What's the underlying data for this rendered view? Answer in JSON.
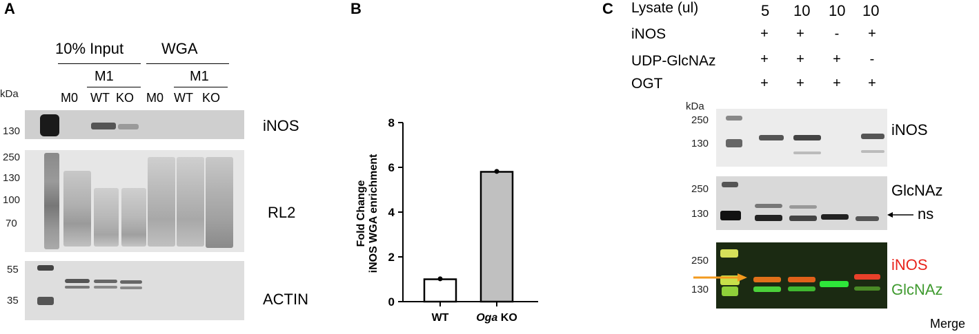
{
  "panelA": {
    "letter": "A",
    "group_input": "10% Input",
    "group_wga": "WGA",
    "m1_label": "M1",
    "lanes": [
      "M0",
      "WT",
      "KO",
      "M0",
      "WT",
      "KO"
    ],
    "kda": "kDa",
    "blots": [
      {
        "label": "iNOS",
        "markers": [
          "130"
        ]
      },
      {
        "label": "RL2",
        "markers": [
          "250",
          "130",
          "100",
          "70"
        ]
      },
      {
        "label": "ACTIN",
        "markers": [
          "55",
          "35"
        ]
      }
    ]
  },
  "panelB": {
    "letter": "B",
    "chart_data": {
      "type": "bar",
      "categories": [
        "WT",
        "Oga KO"
      ],
      "category_parts": [
        {
          "italic": "",
          "rest": "WT"
        },
        {
          "italic": "Oga",
          "rest": " KO"
        }
      ],
      "values": [
        1.0,
        5.8
      ],
      "points": [
        1.02,
        5.82
      ],
      "bar_colors": [
        "#ffffff",
        "#c0c0c0"
      ],
      "ylabel_line1": "Fold Change",
      "ylabel_line2": "iNOS WGA enrichment",
      "ylim": [
        0,
        8
      ],
      "yticks": [
        "0",
        "2",
        "4",
        "6",
        "8"
      ],
      "grid": false
    }
  },
  "panelC": {
    "letter": "C",
    "conditions": [
      {
        "name": "Lysate (ul)",
        "values": [
          "5",
          "10",
          "10",
          "10"
        ]
      },
      {
        "name": "iNOS",
        "values": [
          "+",
          "+",
          "-",
          "+"
        ]
      },
      {
        "name": "UDP-GlcNAz",
        "values": [
          "+",
          "+",
          "+",
          "-"
        ]
      },
      {
        "name": "OGT",
        "values": [
          "+",
          "+",
          "+",
          "+"
        ]
      }
    ],
    "kda": "kDa",
    "blots": [
      {
        "label": "iNOS",
        "markers": [
          "250",
          "130"
        ]
      },
      {
        "label": "GlcNAz",
        "markers": [
          "250",
          "130"
        ],
        "ns_label": "ns"
      },
      {
        "label_red": "iNOS",
        "label_green": "GlcNAz",
        "markers": [
          "250",
          "130"
        ]
      }
    ],
    "merge_label": "Merge",
    "colors": {
      "red_label": "#e8231b",
      "green_label": "#3f9a2f",
      "arrow": "#f39a1e"
    }
  }
}
